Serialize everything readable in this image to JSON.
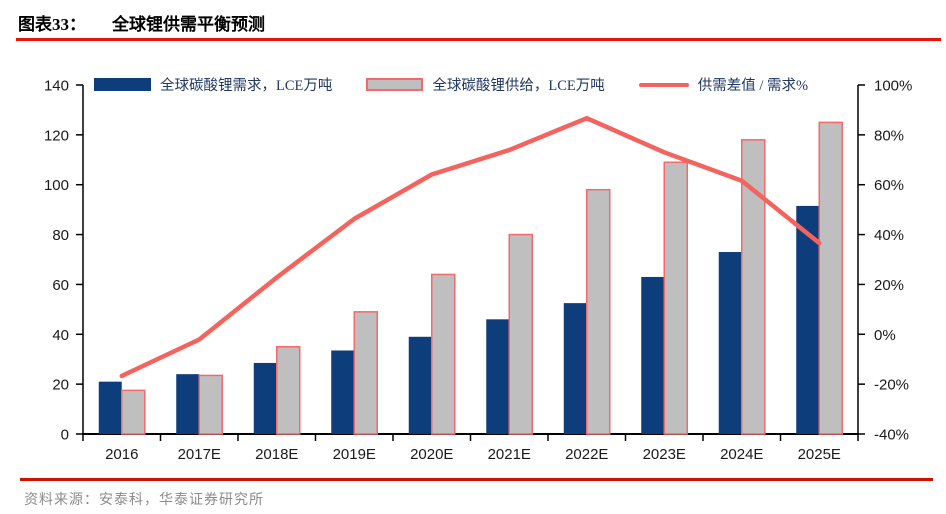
{
  "header": {
    "figure_label": "图表33：",
    "title": "全球锂供需平衡预测"
  },
  "legend": [
    {
      "label": "全球碳酸锂需求，LCE万吨",
      "type": "bar",
      "color": "#0e3d7b"
    },
    {
      "label": "全球碳酸锂供给，LCE万吨",
      "type": "bar",
      "color": "#bfbfbf",
      "border": "#f4696b"
    },
    {
      "label": "供需差值 / 需求%",
      "type": "line",
      "color": "#f4645f"
    }
  ],
  "chart_data": {
    "type": "bar+line",
    "title": "全球锂供需平衡预测",
    "categories": [
      "2016",
      "2017E",
      "2018E",
      "2019E",
      "2020E",
      "2021E",
      "2022E",
      "2023E",
      "2024E",
      "2025E"
    ],
    "series": [
      {
        "name": "全球碳酸锂需求，LCE万吨",
        "type": "bar",
        "axis": "left",
        "color": "#0e3d7b",
        "values": [
          21,
          24,
          28.5,
          33.5,
          39,
          46,
          52.5,
          63,
          73,
          91.5
        ]
      },
      {
        "name": "全球碳酸锂供给，LCE万吨",
        "type": "bar",
        "axis": "left",
        "color": "#bfbfbf",
        "border": "#f4696b",
        "values": [
          17.5,
          23.5,
          35,
          49,
          64,
          80,
          98,
          109,
          118,
          125
        ]
      },
      {
        "name": "供需差值 / 需求%",
        "type": "line",
        "axis": "right",
        "color": "#f4645f",
        "values": [
          -16.7,
          -2.1,
          22.8,
          46.3,
          64.1,
          73.9,
          86.7,
          73.0,
          61.6,
          36.6
        ]
      }
    ],
    "left_axis": {
      "min": 0,
      "max": 140,
      "step": 20,
      "ticks": [
        0,
        20,
        40,
        60,
        80,
        100,
        120,
        140
      ]
    },
    "right_axis": {
      "min": -40,
      "max": 100,
      "step": 20,
      "ticks_labels": [
        "-40%",
        "-20%",
        "0%",
        "20%",
        "40%",
        "60%",
        "80%",
        "100%"
      ]
    },
    "grid": false,
    "legend_position": "top"
  },
  "footer": {
    "source": "资料来源：安泰科，华泰证券研究所"
  }
}
